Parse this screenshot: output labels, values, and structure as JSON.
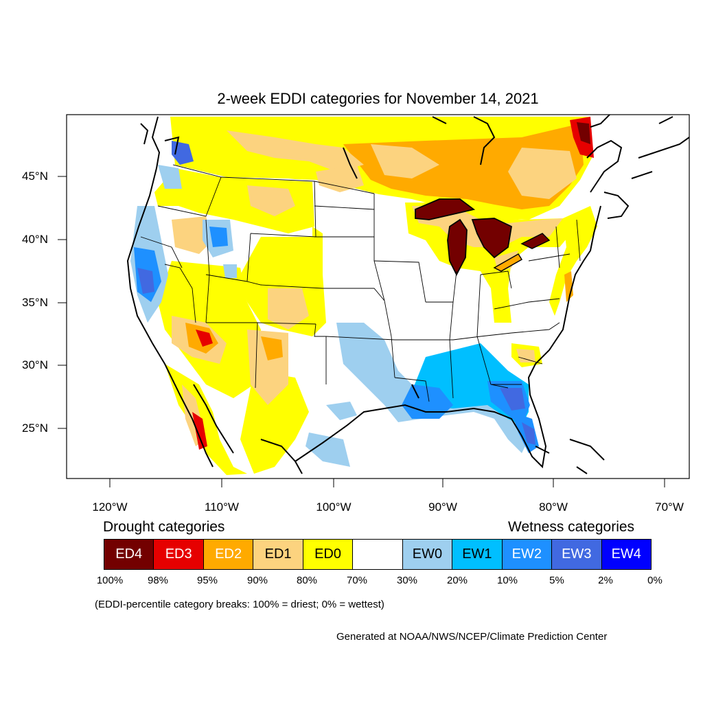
{
  "title": "2-week EDDI categories for November 14, 2021",
  "lat_labels": [
    "45°N",
    "40°N",
    "35°N",
    "30°N",
    "25°N"
  ],
  "lon_labels": [
    "120°W",
    "110°W",
    "100°W",
    "90°W",
    "80°W",
    "70°W"
  ],
  "legend": {
    "drought_heading": "Drought categories",
    "wetness_heading": "Wetness categories",
    "categories": [
      {
        "label": "ED4",
        "color": "#730000",
        "text_color": "#ffffff"
      },
      {
        "label": "ED3",
        "color": "#e60000",
        "text_color": "#ffffff"
      },
      {
        "label": "ED2",
        "color": "#ffaa00",
        "text_color": "#ffffff"
      },
      {
        "label": "ED1",
        "color": "#fcd37f",
        "text_color": "#000000"
      },
      {
        "label": "ED0",
        "color": "#ffff00",
        "text_color": "#000000"
      },
      {
        "label": "",
        "color": "#ffffff",
        "text_color": "#000000"
      },
      {
        "label": "EW0",
        "color": "#9ecfef",
        "text_color": "#000000"
      },
      {
        "label": "EW1",
        "color": "#00bfff",
        "text_color": "#000000"
      },
      {
        "label": "EW2",
        "color": "#1e90ff",
        "text_color": "#ffffff"
      },
      {
        "label": "EW3",
        "color": "#4169e1",
        "text_color": "#ffffff"
      },
      {
        "label": "EW4",
        "color": "#0000ff",
        "text_color": "#ffffff"
      }
    ],
    "breaks": [
      "100%",
      "98%",
      "95%",
      "90%",
      "80%",
      "70%",
      "30%",
      "20%",
      "10%",
      "5%",
      "2%",
      "0%"
    ]
  },
  "note": "(EDDI-percentile category breaks: 100% = driest; 0% = wettest)",
  "credit": "Generated at NOAA/NWS/NCEP/Climate Prediction Center"
}
